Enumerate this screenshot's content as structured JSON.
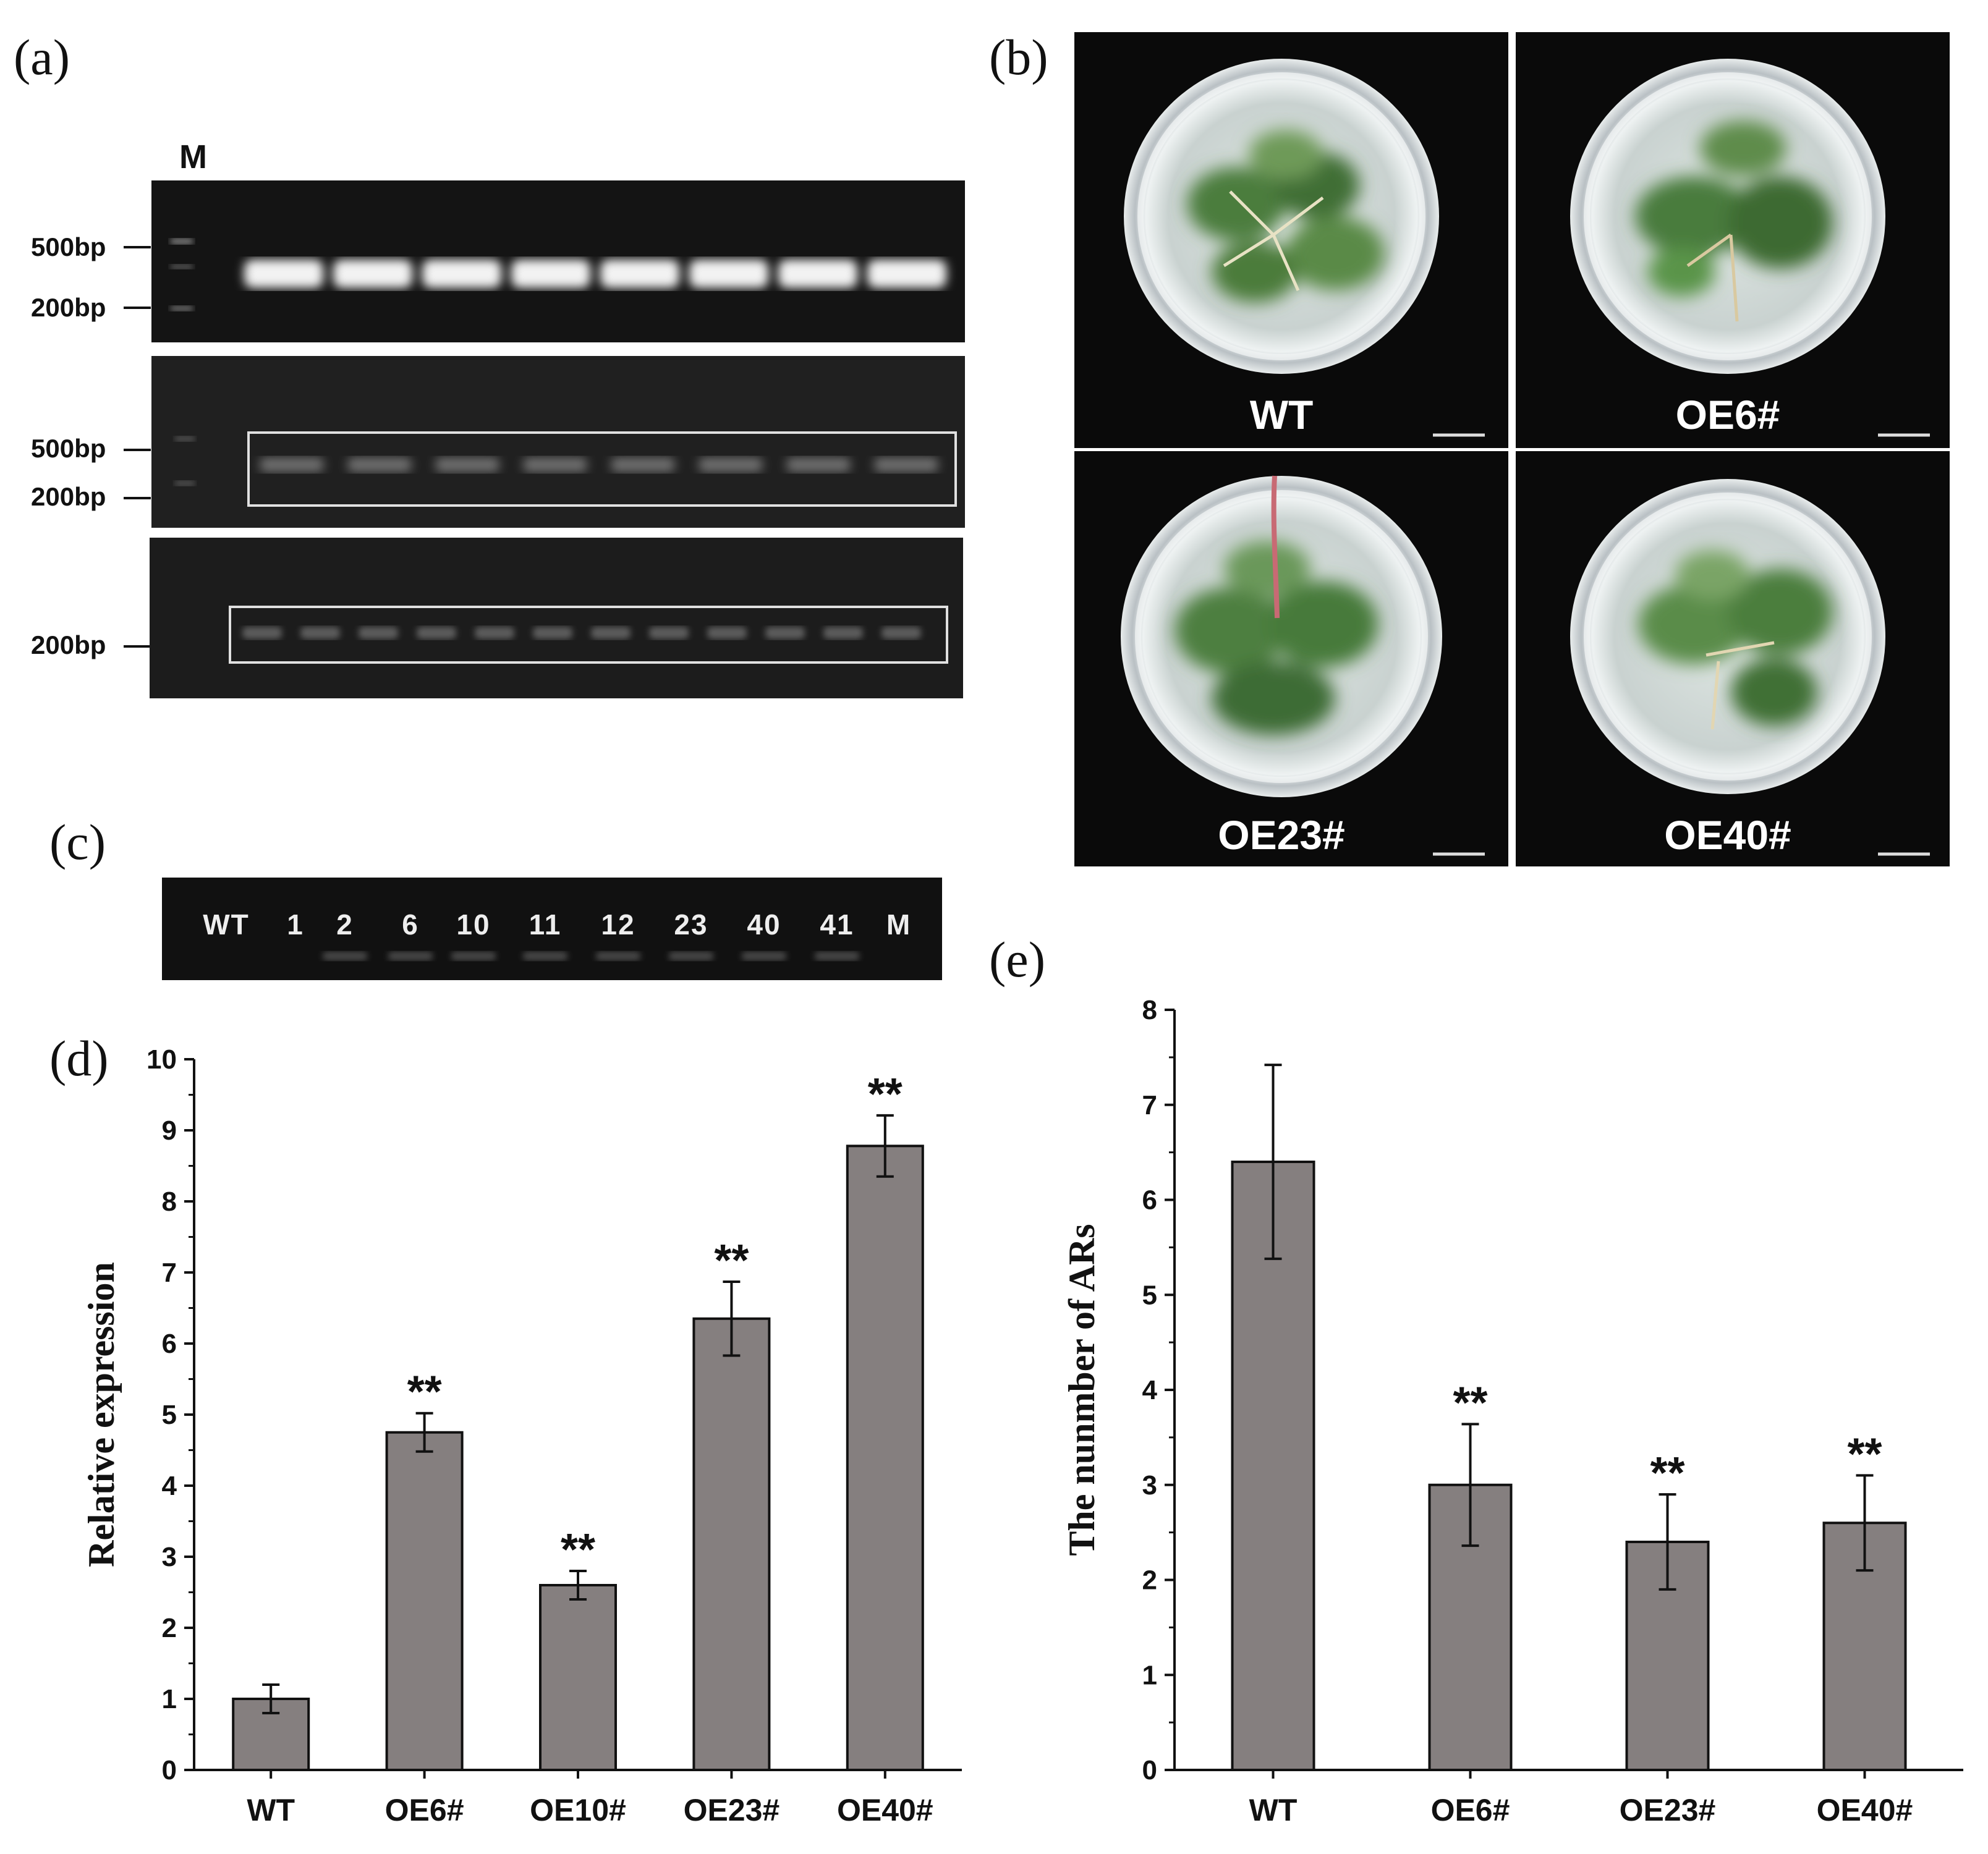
{
  "panel_labels": {
    "a": "(a)",
    "b": "(b)",
    "c": "(c)",
    "d": "(d)",
    "e": "(e)"
  },
  "gel_a": {
    "marker_label": "M",
    "top_ladder": [
      "500bp",
      "200bp"
    ],
    "middle_ladder": [
      "500bp",
      "200bp"
    ],
    "bottom_ladder": [
      "200bp"
    ]
  },
  "photos_b": [
    "WT",
    "OE6#",
    "OE23#",
    "OE40#"
  ],
  "gel_c": {
    "lanes": [
      "WT",
      "1",
      "2",
      "6",
      "10",
      "11",
      "12",
      "23",
      "40",
      "41",
      "M"
    ]
  },
  "chart_data": [
    {
      "type": "bar",
      "panel": "d",
      "categories": [
        "WT",
        "OE6#",
        "OE10#",
        "OE23#",
        "OE40#"
      ],
      "values": [
        1.0,
        4.75,
        2.6,
        6.35,
        8.78
      ],
      "errors": [
        0.2,
        0.27,
        0.2,
        0.52,
        0.43
      ],
      "significance": [
        "",
        "**",
        "**",
        "**",
        "**"
      ],
      "ylabel": "Relative expression",
      "ylim": [
        0,
        10
      ],
      "yticks": [
        "0",
        "1",
        "2",
        "3",
        "4",
        "5",
        "6",
        "7",
        "8",
        "9",
        "10"
      ],
      "bar_color": "#857f7f"
    },
    {
      "type": "bar",
      "panel": "e",
      "categories": [
        "WT",
        "OE6#",
        "OE23#",
        "OE40#"
      ],
      "values": [
        6.4,
        3.0,
        2.4,
        2.6
      ],
      "errors": [
        1.02,
        0.64,
        0.5,
        0.5
      ],
      "significance": [
        "",
        "**",
        "**",
        "**"
      ],
      "ylabel": "The nunmber of ARs",
      "ylim": [
        0,
        8
      ],
      "yticks": [
        "0",
        "1",
        "2",
        "3",
        "4",
        "5",
        "6",
        "7",
        "8"
      ],
      "bar_color": "#857f7f"
    }
  ]
}
